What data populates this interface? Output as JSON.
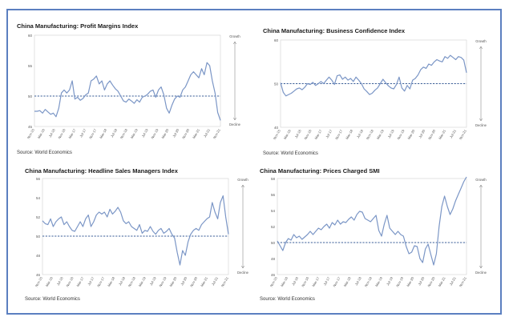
{
  "source_label": "Source: World Economics",
  "side_labels": {
    "top": "Growth",
    "bottom": "Decline"
  },
  "x_tick_labels": [
    "Nov-15",
    "Mar-16",
    "Jul-16",
    "Nov-16",
    "Mar-17",
    "Jul-17",
    "Nov-17",
    "Mar-18",
    "Jul-18",
    "Nov-18",
    "Mar-19",
    "Jul-19",
    "Nov-19",
    "Mar-20",
    "Jul-20",
    "Nov-20",
    "Mar-21",
    "Jul-21",
    "Nov-21"
  ],
  "colors": {
    "line": "#7b96c6",
    "reference": "#3c5f98",
    "frame": "#5b7fc0"
  },
  "chart_data": [
    {
      "type": "line",
      "title": "China Manufacturing: Profit Margins Index",
      "ylim": [
        45,
        60
      ],
      "yticks": [
        45,
        50,
        55,
        60
      ],
      "reference_line": 50,
      "values": [
        47.5,
        47.5,
        47.6,
        47.2,
        47.8,
        47.4,
        47.0,
        47.2,
        46.6,
        48.0,
        50.5,
        51.0,
        50.5,
        51.0,
        52.5,
        49.5,
        49.8,
        49.3,
        49.6,
        50.2,
        50.5,
        52.5,
        52.8,
        53.3,
        52.0,
        52.5,
        51.0,
        52.0,
        52.5,
        51.8,
        51.2,
        50.8,
        50.0,
        49.2,
        49.0,
        49.5,
        49.2,
        48.8,
        49.4,
        49.0,
        49.8,
        50.0,
        50.3,
        50.8,
        51.0,
        49.8,
        51.0,
        51.5,
        50.2,
        48.0,
        47.2,
        48.5,
        49.5,
        50.0,
        49.8,
        51.0,
        51.5,
        52.5,
        53.5,
        54.0,
        53.5,
        53.0,
        54.5,
        53.5,
        55.5,
        55.0,
        52.5,
        50.5,
        47.3,
        46.0
      ]
    },
    {
      "type": "line",
      "title": "China Manufacturing: Business Confidence Index",
      "ylim": [
        40,
        60
      ],
      "yticks": [
        40,
        50,
        60
      ],
      "reference_line": 50,
      "values": [
        50.2,
        48.0,
        47.2,
        47.5,
        47.8,
        48.3,
        48.8,
        49.0,
        48.6,
        49.2,
        50.0,
        49.8,
        50.3,
        49.6,
        50.0,
        50.5,
        50.0,
        50.8,
        51.5,
        50.8,
        49.8,
        51.8,
        52.0,
        51.0,
        51.5,
        50.8,
        51.2,
        50.5,
        51.5,
        50.8,
        50.0,
        48.8,
        48.2,
        47.5,
        47.8,
        48.5,
        49.0,
        50.0,
        51.0,
        50.2,
        49.5,
        49.0,
        48.8,
        49.8,
        51.5,
        49.0,
        48.3,
        49.6,
        48.8,
        50.8,
        51.2,
        52.0,
        53.2,
        53.8,
        53.5,
        54.5,
        54.2,
        55.0,
        55.5,
        55.2,
        55.0,
        56.2,
        55.8,
        56.5,
        56.0,
        55.5,
        56.2,
        56.0,
        55.4,
        52.5
      ]
    },
    {
      "type": "line",
      "title": "China Manufacturing: Headline Sales Managers Index",
      "ylim": [
        46,
        56
      ],
      "yticks": [
        46,
        48,
        50,
        52,
        54,
        56
      ],
      "reference_line": 50,
      "values": [
        51.6,
        51.3,
        51.2,
        51.8,
        51.0,
        51.5,
        51.8,
        52.0,
        51.2,
        51.5,
        51.0,
        50.6,
        50.5,
        51.0,
        51.5,
        51.0,
        51.8,
        52.2,
        51.0,
        51.5,
        52.2,
        52.5,
        52.3,
        52.5,
        52.0,
        52.8,
        52.3,
        52.6,
        53.0,
        52.5,
        51.6,
        51.3,
        51.5,
        51.0,
        50.8,
        50.6,
        51.2,
        50.3,
        50.6,
        50.5,
        51.0,
        50.5,
        50.2,
        50.6,
        50.8,
        50.3,
        50.5,
        50.8,
        50.2,
        49.8,
        48.3,
        47.0,
        48.5,
        48.0,
        49.4,
        50.2,
        50.6,
        50.8,
        50.6,
        51.2,
        51.5,
        51.8,
        52.0,
        53.5,
        52.5,
        51.8,
        53.5,
        54.2,
        52.0,
        50.2
      ]
    },
    {
      "type": "line",
      "title": "China Manufacturing: Prices Charged SMI",
      "ylim": [
        46,
        58
      ],
      "yticks": [
        46,
        48,
        50,
        52,
        54,
        56,
        58
      ],
      "reference_line": 50,
      "values": [
        50.2,
        49.6,
        49.0,
        50.0,
        50.5,
        50.3,
        51.0,
        50.6,
        50.8,
        50.4,
        50.7,
        51.0,
        51.4,
        51.0,
        51.4,
        51.8,
        51.6,
        52.0,
        52.3,
        51.8,
        52.5,
        52.2,
        52.8,
        52.3,
        52.6,
        52.5,
        52.9,
        53.2,
        52.8,
        53.5,
        53.9,
        53.8,
        53.0,
        52.8,
        52.6,
        53.0,
        53.4,
        51.5,
        50.8,
        52.3,
        53.4,
        51.8,
        51.4,
        51.0,
        51.4,
        51.0,
        50.8,
        49.5,
        48.6,
        48.8,
        49.6,
        49.5,
        48.0,
        47.5,
        49.2,
        49.8,
        48.5,
        47.2,
        48.6,
        52.0,
        54.5,
        55.8,
        54.5,
        53.5,
        54.2,
        55.2,
        56.0,
        56.8,
        57.6,
        58.2
      ]
    }
  ]
}
